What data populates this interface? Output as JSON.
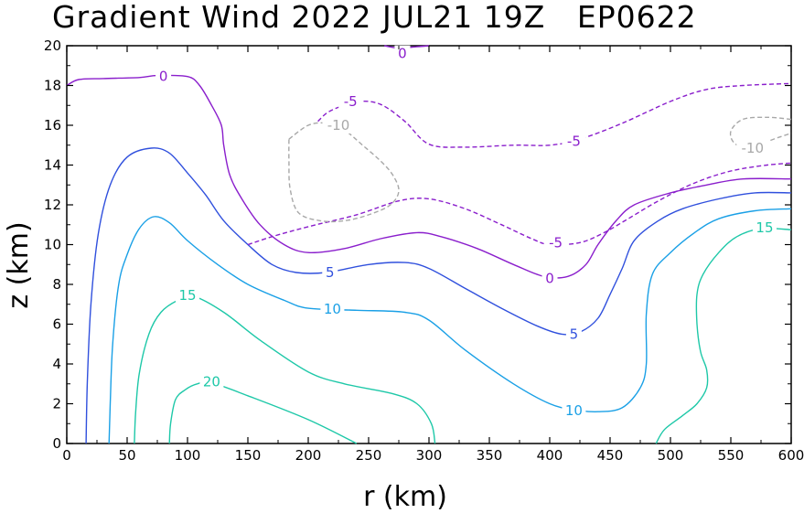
{
  "chart_data": {
    "type": "contour",
    "title": "Gradient Wind 2022 JUL21 19Z   EP0622",
    "xlabel": "r (km)",
    "ylabel": "z (km)",
    "xlim": [
      0,
      600
    ],
    "ylim": [
      0,
      20
    ],
    "x_ticks": [
      "0",
      "50",
      "100",
      "150",
      "200",
      "250",
      "300",
      "350",
      "400",
      "450",
      "500",
      "550",
      "600"
    ],
    "y_ticks": [
      "0",
      "2",
      "4",
      "6",
      "8",
      "10",
      "12",
      "14",
      "16",
      "18",
      "20"
    ],
    "grid": false,
    "contours": [
      {
        "level": 20,
        "color": "#1ec8a8",
        "dashed": false,
        "points": [
          [
            85,
            0
          ],
          [
            86,
            1.0
          ],
          [
            90,
            2.2
          ],
          [
            98,
            2.7
          ],
          [
            108,
            3.0
          ],
          [
            120,
            3.05
          ],
          [
            150,
            2.4
          ],
          [
            200,
            1.2
          ],
          [
            240,
            0
          ]
        ]
      },
      {
        "level": 15,
        "color": "#1ec8a8",
        "dashed": false,
        "points": [
          [
            56,
            0
          ],
          [
            57,
            1.5
          ],
          [
            60,
            3.5
          ],
          [
            68,
            5.5
          ],
          [
            78,
            6.6
          ],
          [
            92,
            7.2
          ],
          [
            105,
            7.4
          ],
          [
            130,
            6.6
          ],
          [
            160,
            5.2
          ],
          [
            200,
            3.6
          ],
          [
            230,
            3.0
          ],
          [
            270,
            2.5
          ],
          [
            290,
            2.0
          ],
          [
            302,
            1.0
          ],
          [
            305,
            0
          ]
        ]
      },
      {
        "level": 15,
        "color": "#1ec8a8",
        "dashed": false,
        "points": [
          [
            488,
            0
          ],
          [
            495,
            0.7
          ],
          [
            510,
            1.4
          ],
          [
            522,
            2.0
          ],
          [
            530,
            2.8
          ],
          [
            530,
            3.7
          ],
          [
            525,
            4.6
          ],
          [
            522,
            6.0
          ],
          [
            522,
            7.5
          ],
          [
            527,
            8.5
          ],
          [
            540,
            9.6
          ],
          [
            555,
            10.4
          ],
          [
            575,
            10.8
          ],
          [
            600,
            10.75
          ]
        ]
      },
      {
        "level": 10,
        "color": "#1aa0e6",
        "dashed": false,
        "points": [
          [
            35,
            0
          ],
          [
            36,
            2.0
          ],
          [
            38,
            5.0
          ],
          [
            43,
            8.0
          ],
          [
            50,
            9.5
          ],
          [
            60,
            10.8
          ],
          [
            72,
            11.4
          ],
          [
            85,
            11.1
          ],
          [
            100,
            10.2
          ],
          [
            125,
            9.0
          ],
          [
            150,
            8.0
          ],
          [
            180,
            7.2
          ],
          [
            200,
            6.8
          ],
          [
            240,
            6.7
          ],
          [
            280,
            6.6
          ],
          [
            300,
            6.2
          ],
          [
            330,
            4.7
          ],
          [
            370,
            3.0
          ],
          [
            400,
            2.0
          ],
          [
            420,
            1.7
          ],
          [
            440,
            1.6
          ],
          [
            460,
            1.8
          ],
          [
            475,
            2.8
          ],
          [
            480,
            4.0
          ],
          [
            480,
            6.5
          ],
          [
            485,
            8.5
          ],
          [
            500,
            9.6
          ],
          [
            520,
            10.6
          ],
          [
            540,
            11.3
          ],
          [
            570,
            11.7
          ],
          [
            600,
            11.8
          ]
        ]
      },
      {
        "level": 5,
        "color": "#3050dd",
        "dashed": false,
        "points": [
          [
            16,
            0
          ],
          [
            17,
            3.0
          ],
          [
            20,
            7.0
          ],
          [
            26,
            10.5
          ],
          [
            36,
            13.0
          ],
          [
            50,
            14.4
          ],
          [
            70,
            14.85
          ],
          [
            85,
            14.6
          ],
          [
            100,
            13.6
          ],
          [
            115,
            12.5
          ],
          [
            130,
            11.2
          ],
          [
            150,
            10.0
          ],
          [
            170,
            9.0
          ],
          [
            190,
            8.6
          ],
          [
            215,
            8.6
          ],
          [
            250,
            9.0
          ],
          [
            280,
            9.1
          ],
          [
            300,
            8.8
          ],
          [
            330,
            7.8
          ],
          [
            360,
            6.8
          ],
          [
            390,
            5.9
          ],
          [
            410,
            5.5
          ],
          [
            425,
            5.6
          ],
          [
            440,
            6.3
          ],
          [
            450,
            7.5
          ],
          [
            460,
            8.8
          ],
          [
            470,
            10.2
          ],
          [
            490,
            11.2
          ],
          [
            510,
            11.8
          ],
          [
            540,
            12.3
          ],
          [
            570,
            12.6
          ],
          [
            600,
            12.6
          ]
        ]
      },
      {
        "level": 0,
        "color": "#8a1ecc",
        "dashed": false,
        "points": [
          [
            0,
            18.0
          ],
          [
            10,
            18.3
          ],
          [
            30,
            18.35
          ],
          [
            60,
            18.4
          ],
          [
            75,
            18.5
          ],
          [
            100,
            18.45
          ],
          [
            110,
            18.0
          ],
          [
            120,
            17.0
          ],
          [
            128,
            16.0
          ],
          [
            130,
            15.0
          ],
          [
            135,
            13.5
          ],
          [
            145,
            12.3
          ],
          [
            160,
            11.0
          ],
          [
            180,
            10.0
          ],
          [
            200,
            9.6
          ],
          [
            230,
            9.8
          ],
          [
            260,
            10.3
          ],
          [
            290,
            10.6
          ],
          [
            310,
            10.4
          ],
          [
            340,
            9.8
          ],
          [
            370,
            9.0
          ],
          [
            395,
            8.4
          ],
          [
            415,
            8.4
          ],
          [
            430,
            9.0
          ],
          [
            440,
            10.0
          ],
          [
            455,
            11.2
          ],
          [
            470,
            12.0
          ],
          [
            500,
            12.6
          ],
          [
            530,
            13.0
          ],
          [
            560,
            13.3
          ],
          [
            600,
            13.3
          ]
        ]
      },
      {
        "level": 0,
        "color": "#8a1ecc",
        "dashed": false,
        "points": [
          [
            263,
            20.0
          ],
          [
            275,
            19.88
          ],
          [
            290,
            19.95
          ],
          [
            300,
            20.0
          ]
        ]
      },
      {
        "level": -5,
        "color": "#8a1ecc",
        "dashed": true,
        "points": [
          [
            150,
            10.0
          ],
          [
            170,
            10.4
          ],
          [
            200,
            10.9
          ],
          [
            240,
            11.5
          ],
          [
            275,
            12.2
          ],
          [
            300,
            12.3
          ],
          [
            330,
            11.8
          ],
          [
            360,
            11.0
          ],
          [
            385,
            10.3
          ],
          [
            400,
            10.0
          ],
          [
            425,
            10.1
          ],
          [
            445,
            10.6
          ],
          [
            465,
            11.3
          ],
          [
            490,
            12.2
          ],
          [
            520,
            13.1
          ],
          [
            550,
            13.7
          ],
          [
            580,
            14.0
          ],
          [
            600,
            14.1
          ]
        ]
      },
      {
        "level": -5,
        "color": "#8a1ecc",
        "dashed": true,
        "points": [
          [
            208,
            16.2
          ],
          [
            215,
            16.6
          ],
          [
            225,
            16.9
          ],
          [
            242,
            17.2
          ],
          [
            260,
            17.05
          ],
          [
            280,
            16.2
          ],
          [
            300,
            15.05
          ],
          [
            330,
            14.9
          ],
          [
            370,
            15.0
          ],
          [
            400,
            15.0
          ],
          [
            425,
            15.3
          ],
          [
            460,
            16.1
          ],
          [
            500,
            17.2
          ],
          [
            530,
            17.8
          ],
          [
            560,
            18.0
          ],
          [
            600,
            18.1
          ]
        ]
      },
      {
        "level": -10,
        "color": "#a8a8a8",
        "dashed": true,
        "points": [
          [
            184,
            15.3
          ],
          [
            200,
            16.0
          ],
          [
            215,
            16.1
          ],
          [
            230,
            15.75
          ],
          [
            245,
            15.0
          ],
          [
            260,
            14.2
          ],
          [
            270,
            13.5
          ],
          [
            275,
            12.7
          ],
          [
            268,
            12.0
          ],
          [
            250,
            11.5
          ],
          [
            230,
            11.2
          ],
          [
            210,
            11.2
          ],
          [
            192,
            11.6
          ],
          [
            185,
            12.8
          ],
          [
            184,
            14.2
          ],
          [
            184,
            15.3
          ]
        ]
      },
      {
        "level": -10,
        "color": "#a8a8a8",
        "dashed": true,
        "points": [
          [
            600,
            16.3
          ],
          [
            580,
            16.4
          ],
          [
            560,
            16.3
          ],
          [
            550,
            15.7
          ],
          [
            553,
            15.1
          ],
          [
            565,
            14.9
          ],
          [
            590,
            15.4
          ],
          [
            600,
            15.6
          ]
        ]
      }
    ],
    "contour_labels": [
      {
        "text": "20",
        "x": 120,
        "y": 3.1,
        "color": "#1ec8a8"
      },
      {
        "text": "15",
        "x": 100,
        "y": 7.45,
        "color": "#1ec8a8"
      },
      {
        "text": "15",
        "x": 578,
        "y": 10.85,
        "color": "#1ec8a8"
      },
      {
        "text": "10",
        "x": 220,
        "y": 6.75,
        "color": "#1aa0e6"
      },
      {
        "text": "10",
        "x": 420,
        "y": 1.65,
        "color": "#1aa0e6"
      },
      {
        "text": "5",
        "x": 218,
        "y": 8.6,
        "color": "#3050dd"
      },
      {
        "text": "5",
        "x": 420,
        "y": 5.5,
        "color": "#3050dd"
      },
      {
        "text": "0",
        "x": 80,
        "y": 18.45,
        "color": "#8a1ecc"
      },
      {
        "text": "0",
        "x": 400,
        "y": 8.3,
        "color": "#8a1ecc"
      },
      {
        "text": "0",
        "x": 278,
        "y": 19.6,
        "color": "#8a1ecc"
      },
      {
        "text": "-5",
        "x": 405,
        "y": 10.1,
        "color": "#8a1ecc"
      },
      {
        "text": "-5",
        "x": 235,
        "y": 17.2,
        "color": "#8a1ecc"
      },
      {
        "text": "-5",
        "x": 420,
        "y": 15.2,
        "color": "#8a1ecc"
      },
      {
        "text": "-10",
        "x": 225,
        "y": 16.0,
        "color": "#a8a8a8"
      },
      {
        "text": "-10",
        "x": 568,
        "y": 14.85,
        "color": "#a8a8a8"
      }
    ]
  }
}
